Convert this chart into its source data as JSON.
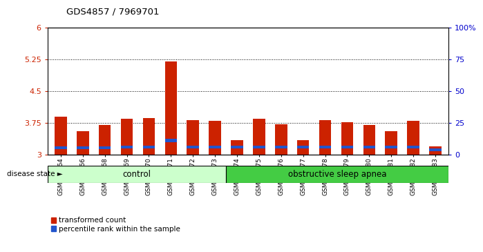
{
  "title": "GDS4857 / 7969701",
  "samples": [
    "GSM949164",
    "GSM949166",
    "GSM949168",
    "GSM949169",
    "GSM949170",
    "GSM949171",
    "GSM949172",
    "GSM949173",
    "GSM949174",
    "GSM949175",
    "GSM949176",
    "GSM949177",
    "GSM949178",
    "GSM949179",
    "GSM949180",
    "GSM949181",
    "GSM949182",
    "GSM949183"
  ],
  "red_values": [
    3.9,
    3.55,
    3.7,
    3.85,
    3.87,
    5.2,
    3.82,
    3.8,
    3.35,
    3.85,
    3.72,
    3.35,
    3.82,
    3.77,
    3.7,
    3.55,
    3.8,
    3.2
  ],
  "blue_positions": [
    3.13,
    3.13,
    3.13,
    3.15,
    3.14,
    3.3,
    3.14,
    3.14,
    3.15,
    3.14,
    3.15,
    3.14,
    3.15,
    3.14,
    3.14,
    3.15,
    3.14,
    3.08
  ],
  "blue_heights": [
    0.07,
    0.07,
    0.07,
    0.07,
    0.07,
    0.07,
    0.07,
    0.07,
    0.07,
    0.07,
    0.07,
    0.07,
    0.07,
    0.07,
    0.07,
    0.07,
    0.07,
    0.07
  ],
  "ylim_left": [
    3.0,
    6.0
  ],
  "yticks_left": [
    3.0,
    3.75,
    4.5,
    5.25,
    6.0
  ],
  "ytick_labels_left": [
    "3",
    "3.75",
    "4.5",
    "5.25",
    "6"
  ],
  "ylim_right": [
    0,
    100
  ],
  "yticks_right": [
    0,
    25,
    50,
    75,
    100
  ],
  "ytick_labels_right": [
    "0",
    "25",
    "50",
    "75",
    "100%"
  ],
  "hlines": [
    3.75,
    4.5,
    5.25
  ],
  "control_samples": 8,
  "control_label": "control",
  "apnea_label": "obstructive sleep apnea",
  "disease_state_label": "disease state",
  "control_color": "#ccffcc",
  "apnea_color": "#44cc44",
  "bar_color_red": "#cc2200",
  "bar_color_blue": "#2255cc",
  "bar_width": 0.55,
  "background_color": "#ffffff",
  "legend_red": "transformed count",
  "legend_blue": "percentile rank within the sample",
  "left_label_color": "#cc2200",
  "right_label_color": "#0000cc"
}
